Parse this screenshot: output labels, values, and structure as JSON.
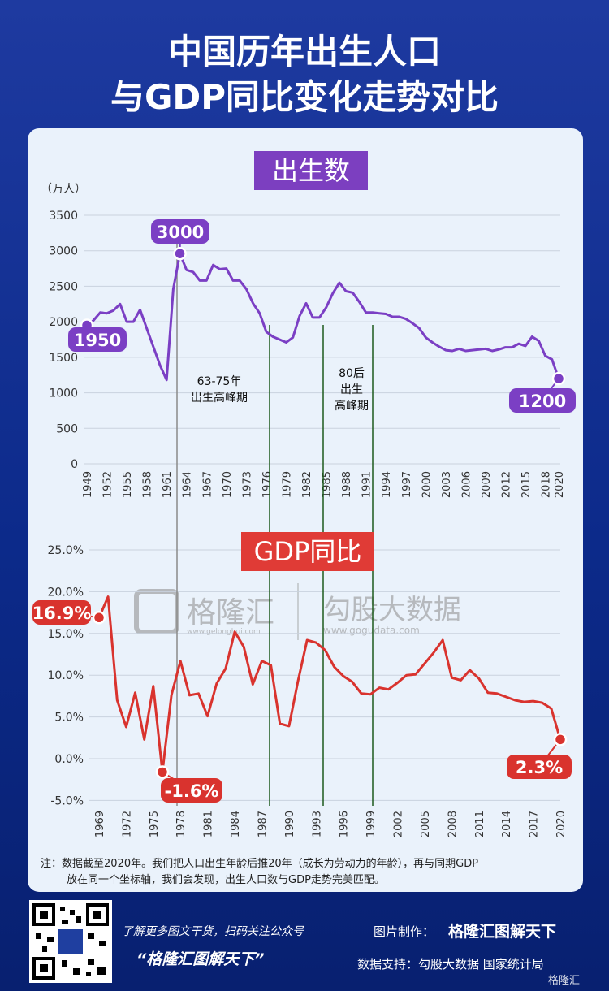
{
  "title_line1": "中国历年出生人口",
  "title_line2": "与GDP同比变化走势对比",
  "births_label": "出生数",
  "gdp_label": "GDP同比",
  "unit": "（万人）",
  "period1_line1": "63-75年",
  "period1_line2": "出生高峰期",
  "period2_line1": "80后",
  "period2_line2": "出生",
  "period2_line3": "高峰期",
  "watermark_left": "格隆汇",
  "watermark_left_url": "www.gelonghui.com",
  "watermark_right": "勾股大数据",
  "watermark_right_url": "www.gogudata.com",
  "note_line1": "注：数据截至2020年。我们把人口出生年龄后推20年（成长为劳动力的年龄），再与同期GDP",
  "note_line2": "放在同一个坐标轴，我们会发现，出生人口数与GDP走势完美匹配。",
  "promo_line1": "了解更多图文干货，扫码关注公众号",
  "promo_line2": "“格隆汇图解天下”",
  "credit_label1": "图片制作：",
  "credit_value1": "格隆汇图解天下",
  "credit_line2": "数据支持：勾股大数据  国家统计局",
  "brand_footer": "格隆汇",
  "colors": {
    "births": "#7b3fc4",
    "gdp": "#d9332e",
    "vline": "#1d5a1d",
    "grey_line": "#8a8a8a"
  },
  "chart_data": [
    {
      "type": "line",
      "ylabel": "（万人）",
      "ylim": [
        0,
        3500
      ],
      "yticks": [
        0,
        500,
        1000,
        1500,
        2000,
        2500,
        3000,
        3500
      ],
      "xticks": [
        "1949",
        "1952",
        "1955",
        "1958",
        "1961",
        "1964",
        "1967",
        "1970",
        "1973",
        "1976",
        "1979",
        "1982",
        "1985",
        "1988",
        "1991",
        "1994",
        "1997",
        "2000",
        "2003",
        "2006",
        "2009",
        "2012",
        "2015",
        "2018",
        "2020"
      ],
      "annotations": [
        {
          "year": 1949,
          "label": "1950"
        },
        {
          "year": 1963,
          "label": "3000"
        },
        {
          "year": 2020,
          "label": "1200"
        }
      ],
      "series": [
        {
          "x": [
            1949,
            1950,
            1951,
            1952,
            1953,
            1954,
            1955,
            1956,
            1957,
            1958,
            1959,
            1960,
            1961,
            1962,
            1963,
            1964,
            1965,
            1966,
            1967,
            1968,
            1969,
            1970,
            1971,
            1972,
            1973,
            1974,
            1975,
            1976,
            1977,
            1978,
            1979,
            1980,
            1981,
            1982,
            1983,
            1984,
            1985,
            1986,
            1987,
            1988,
            1989,
            1990,
            1991,
            1992,
            1993,
            1994,
            1995,
            1996,
            1997,
            1998,
            1999,
            2000,
            2001,
            2002,
            2003,
            2004,
            2005,
            2006,
            2007,
            2008,
            2009,
            2010,
            2011,
            2012,
            2013,
            2014,
            2015,
            2016,
            2017,
            2018,
            2019,
            2020
          ],
          "y": [
            1950,
            2020,
            2130,
            2120,
            2160,
            2250,
            2000,
            2000,
            2170,
            1910,
            1650,
            1390,
            1180,
            2460,
            2960,
            2730,
            2700,
            2580,
            2580,
            2800,
            2740,
            2750,
            2580,
            2580,
            2460,
            2260,
            2120,
            1860,
            1790,
            1750,
            1710,
            1780,
            2080,
            2260,
            2060,
            2060,
            2200,
            2400,
            2550,
            2430,
            2410,
            2280,
            2130,
            2130,
            2120,
            2110,
            2070,
            2070,
            2040,
            1980,
            1910,
            1780,
            1710,
            1650,
            1600,
            1590,
            1620,
            1590,
            1600,
            1610,
            1620,
            1590,
            1610,
            1640,
            1640,
            1690,
            1660,
            1790,
            1730,
            1520,
            1470,
            1200
          ]
        }
      ]
    },
    {
      "type": "line",
      "ylim": [
        -5,
        25
      ],
      "yticks": [
        "-5.0%",
        "0.0%",
        "5.0%",
        "10.0%",
        "15.0%",
        "20.0%",
        "25.0%"
      ],
      "xticks": [
        "1969",
        "1972",
        "1975",
        "1978",
        "1981",
        "1984",
        "1987",
        "1990",
        "1993",
        "1996",
        "1999",
        "2002",
        "2005",
        "2008",
        "2011",
        "2014",
        "2017",
        "2020"
      ],
      "annotations": [
        {
          "year": 1969,
          "label": "16.9%"
        },
        {
          "year": 1976,
          "label": "-1.6%"
        },
        {
          "year": 2020,
          "label": "2.3%"
        }
      ],
      "series": [
        {
          "x": [
            1969,
            1970,
            1971,
            1972,
            1973,
            1974,
            1975,
            1976,
            1977,
            1978,
            1979,
            1980,
            1981,
            1982,
            1983,
            1984,
            1985,
            1986,
            1987,
            1988,
            1989,
            1990,
            1991,
            1992,
            1993,
            1994,
            1995,
            1996,
            1997,
            1998,
            1999,
            2000,
            2001,
            2002,
            2003,
            2004,
            2005,
            2006,
            2007,
            2008,
            2009,
            2010,
            2011,
            2012,
            2013,
            2014,
            2015,
            2016,
            2017,
            2018,
            2019,
            2020
          ],
          "y": [
            16.9,
            19.4,
            7.0,
            3.8,
            7.9,
            2.3,
            8.7,
            -1.6,
            7.6,
            11.7,
            7.6,
            7.8,
            5.1,
            9.0,
            10.8,
            15.2,
            13.4,
            8.9,
            11.7,
            11.2,
            4.2,
            3.9,
            9.3,
            14.2,
            13.9,
            13.0,
            11.0,
            9.9,
            9.2,
            7.8,
            7.7,
            8.5,
            8.3,
            9.1,
            10.0,
            10.1,
            11.4,
            12.7,
            14.2,
            9.7,
            9.4,
            10.6,
            9.6,
            7.9,
            7.8,
            7.4,
            7.0,
            6.8,
            6.9,
            6.7,
            6.0,
            2.3
          ]
        }
      ]
    }
  ]
}
